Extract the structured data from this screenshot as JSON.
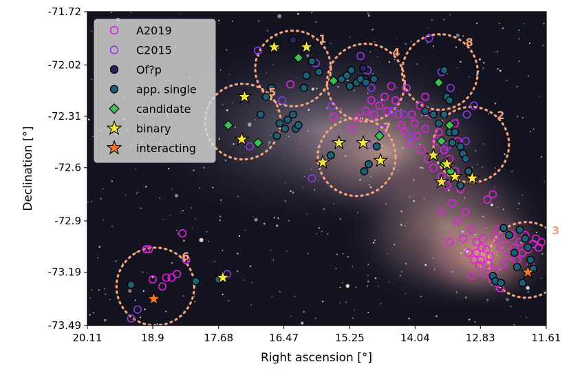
{
  "chart_data": {
    "type": "scatter",
    "xlabel": "Right ascension [°]",
    "ylabel": "Declination [°]",
    "xlim": [
      20.11,
      11.61
    ],
    "ylim": [
      -73.49,
      -71.72
    ],
    "x_ticks": [
      "20.11",
      "18.9",
      "17.68",
      "16.47",
      "15.25",
      "14.04",
      "12.83",
      "11.61"
    ],
    "y_ticks": [
      "-71.72",
      "-72.02",
      "-72.31",
      "-72.6",
      "-72.9",
      "-73.19",
      "-73.49"
    ],
    "legend_position": "top-left",
    "background": "night-sky image of the Small Magellanic Cloud",
    "colors": {
      "A2019": "#e020e0",
      "C2015": "#8a3ae6",
      "Ofp": "#2a2460",
      "single": "#1d5f74",
      "candidate": "#3ebf56",
      "binary": "#f5e342",
      "interacting": "#f07a2a",
      "region": "#f2a37e"
    },
    "legend": [
      "A2019",
      "C2015",
      "Of?p",
      "app. single",
      "candidate",
      "binary",
      "interacting"
    ],
    "regions": [
      {
        "label": "1",
        "ra": 16.3,
        "dec": -72.04,
        "r": 0.7
      },
      {
        "label": "2",
        "ra": 13.0,
        "dec": -72.47,
        "r": 0.7
      },
      {
        "label": "3",
        "ra": 11.98,
        "dec": -73.12,
        "r": 0.7
      },
      {
        "label": "4",
        "ra": 14.95,
        "dec": -72.12,
        "r": 0.72
      },
      {
        "label": "5",
        "ra": 17.23,
        "dec": -72.34,
        "r": 0.7
      },
      {
        "label": "6",
        "ra": 18.85,
        "dec": -73.27,
        "r": 0.72
      },
      {
        "label": "7",
        "ra": 15.12,
        "dec": -72.54,
        "r": 0.72
      },
      {
        "label": "8",
        "ra": 13.58,
        "dec": -72.06,
        "r": 0.7
      }
    ],
    "series": [
      {
        "name": "A2019",
        "marker": "open-circle",
        "points": [
          [
            19.02,
            -73.06
          ],
          [
            18.97,
            -73.06
          ],
          [
            18.35,
            -72.97
          ],
          [
            18.28,
            -73.12
          ],
          [
            18.65,
            -73.22
          ],
          [
            18.55,
            -73.22
          ],
          [
            18.45,
            -73.2
          ],
          [
            18.9,
            -73.23
          ],
          [
            18.72,
            -73.27
          ],
          [
            16.35,
            -72.13
          ],
          [
            15.55,
            -72.31
          ],
          [
            15.2,
            -72.38
          ],
          [
            15.1,
            -72.32
          ],
          [
            14.95,
            -72.28
          ],
          [
            14.85,
            -72.22
          ],
          [
            14.8,
            -72.3
          ],
          [
            14.7,
            -72.25
          ],
          [
            14.6,
            -72.2
          ],
          [
            14.55,
            -72.28
          ],
          [
            14.48,
            -72.14
          ],
          [
            14.4,
            -72.22
          ],
          [
            14.35,
            -72.3
          ],
          [
            14.3,
            -72.36
          ],
          [
            14.22,
            -72.4
          ],
          [
            14.15,
            -72.46
          ],
          [
            14.1,
            -72.3
          ],
          [
            14.05,
            -72.35
          ],
          [
            14.0,
            -72.42
          ],
          [
            13.95,
            -72.25
          ],
          [
            13.92,
            -72.5
          ],
          [
            13.85,
            -72.38
          ],
          [
            13.8,
            -72.55
          ],
          [
            13.75,
            -72.3
          ],
          [
            13.7,
            -72.6
          ],
          [
            13.65,
            -72.45
          ],
          [
            13.6,
            -72.4
          ],
          [
            13.55,
            -72.65
          ],
          [
            13.5,
            -72.5
          ],
          [
            13.45,
            -72.7
          ],
          [
            13.4,
            -72.55
          ],
          [
            13.35,
            -72.8
          ],
          [
            13.3,
            -72.62
          ],
          [
            13.25,
            -72.9
          ],
          [
            13.2,
            -72.72
          ],
          [
            13.15,
            -73.0
          ],
          [
            13.1,
            -72.85
          ],
          [
            13.05,
            -73.08
          ],
          [
            13.0,
            -72.95
          ],
          [
            12.95,
            -73.12
          ],
          [
            12.9,
            -73.02
          ],
          [
            12.85,
            -73.15
          ],
          [
            12.8,
            -73.05
          ],
          [
            12.75,
            -73.2
          ],
          [
            12.7,
            -72.78
          ],
          [
            12.65,
            -73.1
          ],
          [
            12.6,
            -72.75
          ],
          [
            12.55,
            -73.0
          ],
          [
            12.5,
            -72.95
          ],
          [
            12.45,
            -73.05
          ],
          [
            12.4,
            -73.15
          ],
          [
            12.35,
            -73.0
          ],
          [
            12.3,
            -73.1
          ],
          [
            12.25,
            -72.98
          ],
          [
            12.2,
            -73.05
          ],
          [
            12.15,
            -73.12
          ],
          [
            12.1,
            -73.02
          ],
          [
            12.05,
            -73.08
          ],
          [
            12.0,
            -72.98
          ],
          [
            11.95,
            -73.06
          ],
          [
            11.9,
            -73.15
          ],
          [
            11.85,
            -73.03
          ],
          [
            11.8,
            -73.0
          ],
          [
            11.75,
            -73.05
          ],
          [
            11.7,
            -73.02
          ],
          [
            12.9,
            -73.08
          ],
          [
            12.82,
            -73.12
          ],
          [
            12.78,
            -73.0
          ],
          [
            12.72,
            -73.06
          ],
          [
            12.68,
            -73.14
          ],
          [
            12.62,
            -73.22
          ],
          [
            12.58,
            -73.18
          ],
          [
            12.52,
            -73.25
          ],
          [
            12.46,
            -73.28
          ],
          [
            12.98,
            -73.21
          ],
          [
            13.4,
            -73.02
          ],
          [
            13.55,
            -72.85
          ],
          [
            13.85,
            -72.2
          ],
          [
            14.2,
            -72.15
          ],
          [
            13.3,
            -72.35
          ],
          [
            13.25,
            -72.45
          ],
          [
            13.1,
            -72.55
          ]
        ]
      },
      {
        "name": "C2015",
        "marker": "open-circle",
        "points": [
          [
            19.3,
            -73.45
          ],
          [
            19.18,
            -73.4
          ],
          [
            17.52,
            -73.2
          ],
          [
            17.1,
            -72.48
          ],
          [
            16.95,
            -71.94
          ],
          [
            16.5,
            -72.22
          ],
          [
            15.88,
            -72.01
          ],
          [
            15.58,
            -72.25
          ],
          [
            15.05,
            -71.97
          ],
          [
            14.92,
            -72.05
          ],
          [
            14.85,
            -72.15
          ],
          [
            14.9,
            -72.47
          ],
          [
            14.65,
            -72.38
          ],
          [
            14.45,
            -72.28
          ],
          [
            14.25,
            -72.3
          ],
          [
            14.12,
            -72.42
          ],
          [
            13.78,
            -71.87
          ],
          [
            13.55,
            -72.06
          ],
          [
            13.38,
            -72.15
          ],
          [
            13.1,
            -72.45
          ],
          [
            12.95,
            -72.25
          ],
          [
            13.6,
            -72.35
          ],
          [
            13.45,
            -72.48
          ],
          [
            15.95,
            -72.66
          ],
          [
            13.08,
            -72.3
          ]
        ]
      },
      {
        "name": "Of?p",
        "marker": "filled-circle",
        "points": [
          [
            16.3,
            -71.88
          ],
          [
            15.0,
            -72.04
          ],
          [
            14.97,
            -72.1
          ]
        ]
      },
      {
        "name": "app. single",
        "marker": "filled-circle",
        "points": [
          [
            19.3,
            -73.26
          ],
          [
            17.68,
            -73.23
          ],
          [
            18.1,
            -73.24
          ],
          [
            16.9,
            -72.3
          ],
          [
            16.8,
            -72.2
          ],
          [
            16.7,
            -72.15
          ],
          [
            16.55,
            -72.35
          ],
          [
            16.6,
            -72.42
          ],
          [
            16.4,
            -72.33
          ],
          [
            16.45,
            -72.38
          ],
          [
            16.3,
            -72.3
          ],
          [
            16.25,
            -72.38
          ],
          [
            16.2,
            -72.36
          ],
          [
            16.1,
            -72.15
          ],
          [
            16.05,
            -72.08
          ],
          [
            15.95,
            -72.0
          ],
          [
            15.82,
            -72.06
          ],
          [
            15.4,
            -72.1
          ],
          [
            15.22,
            -72.05
          ],
          [
            15.12,
            -72.12
          ],
          [
            15.05,
            -72.1
          ],
          [
            14.95,
            -72.12
          ],
          [
            14.8,
            -72.1
          ],
          [
            15.25,
            -72.14
          ],
          [
            15.3,
            -72.08
          ],
          [
            14.98,
            -72.62
          ],
          [
            14.9,
            -72.58
          ],
          [
            14.75,
            -72.48
          ],
          [
            15.6,
            -72.53
          ],
          [
            13.85,
            -72.28
          ],
          [
            13.7,
            -72.3
          ],
          [
            13.6,
            -72.35
          ],
          [
            13.5,
            -72.3
          ],
          [
            13.4,
            -72.4
          ],
          [
            13.35,
            -72.46
          ],
          [
            13.2,
            -72.48
          ],
          [
            13.15,
            -72.52
          ],
          [
            13.1,
            -72.55
          ],
          [
            13.05,
            -72.62
          ],
          [
            13.5,
            -72.05
          ],
          [
            13.45,
            -72.2
          ],
          [
            13.4,
            -72.22
          ],
          [
            13.3,
            -72.4
          ],
          [
            13.2,
            -72.7
          ],
          [
            12.4,
            -72.94
          ],
          [
            12.3,
            -72.98
          ],
          [
            12.1,
            -72.95
          ],
          [
            12.0,
            -73.0
          ],
          [
            11.95,
            -73.05
          ],
          [
            12.2,
            -73.08
          ],
          [
            11.9,
            -73.12
          ],
          [
            12.15,
            -73.16
          ],
          [
            11.85,
            -73.17
          ],
          [
            12.6,
            -73.21
          ],
          [
            12.55,
            -73.24
          ],
          [
            12.45,
            -73.25
          ],
          [
            12.05,
            -73.25
          ]
        ]
      },
      {
        "name": "candidate",
        "marker": "diamond",
        "points": [
          [
            16.2,
            -71.98
          ],
          [
            15.55,
            -72.11
          ],
          [
            17.5,
            -72.36
          ],
          [
            16.95,
            -72.46
          ],
          [
            13.6,
            -72.12
          ],
          [
            13.4,
            -72.36
          ],
          [
            13.55,
            -72.45
          ],
          [
            13.5,
            -72.58
          ],
          [
            13.38,
            -72.62
          ],
          [
            14.7,
            -72.42
          ]
        ]
      },
      {
        "name": "binary",
        "marker": "star",
        "points": [
          [
            16.65,
            -71.92
          ],
          [
            16.05,
            -71.92
          ],
          [
            17.2,
            -72.2
          ],
          [
            17.25,
            -72.44
          ],
          [
            15.45,
            -72.46
          ],
          [
            15.0,
            -72.46
          ],
          [
            14.68,
            -72.56
          ],
          [
            15.75,
            -72.57
          ],
          [
            13.7,
            -72.53
          ],
          [
            13.45,
            -72.58
          ],
          [
            13.3,
            -72.65
          ],
          [
            13.55,
            -72.68
          ],
          [
            12.98,
            -72.66
          ],
          [
            17.6,
            -73.22
          ]
        ]
      },
      {
        "name": "interacting",
        "marker": "star",
        "points": [
          [
            18.88,
            -73.34
          ],
          [
            11.95,
            -73.19
          ]
        ]
      }
    ]
  }
}
